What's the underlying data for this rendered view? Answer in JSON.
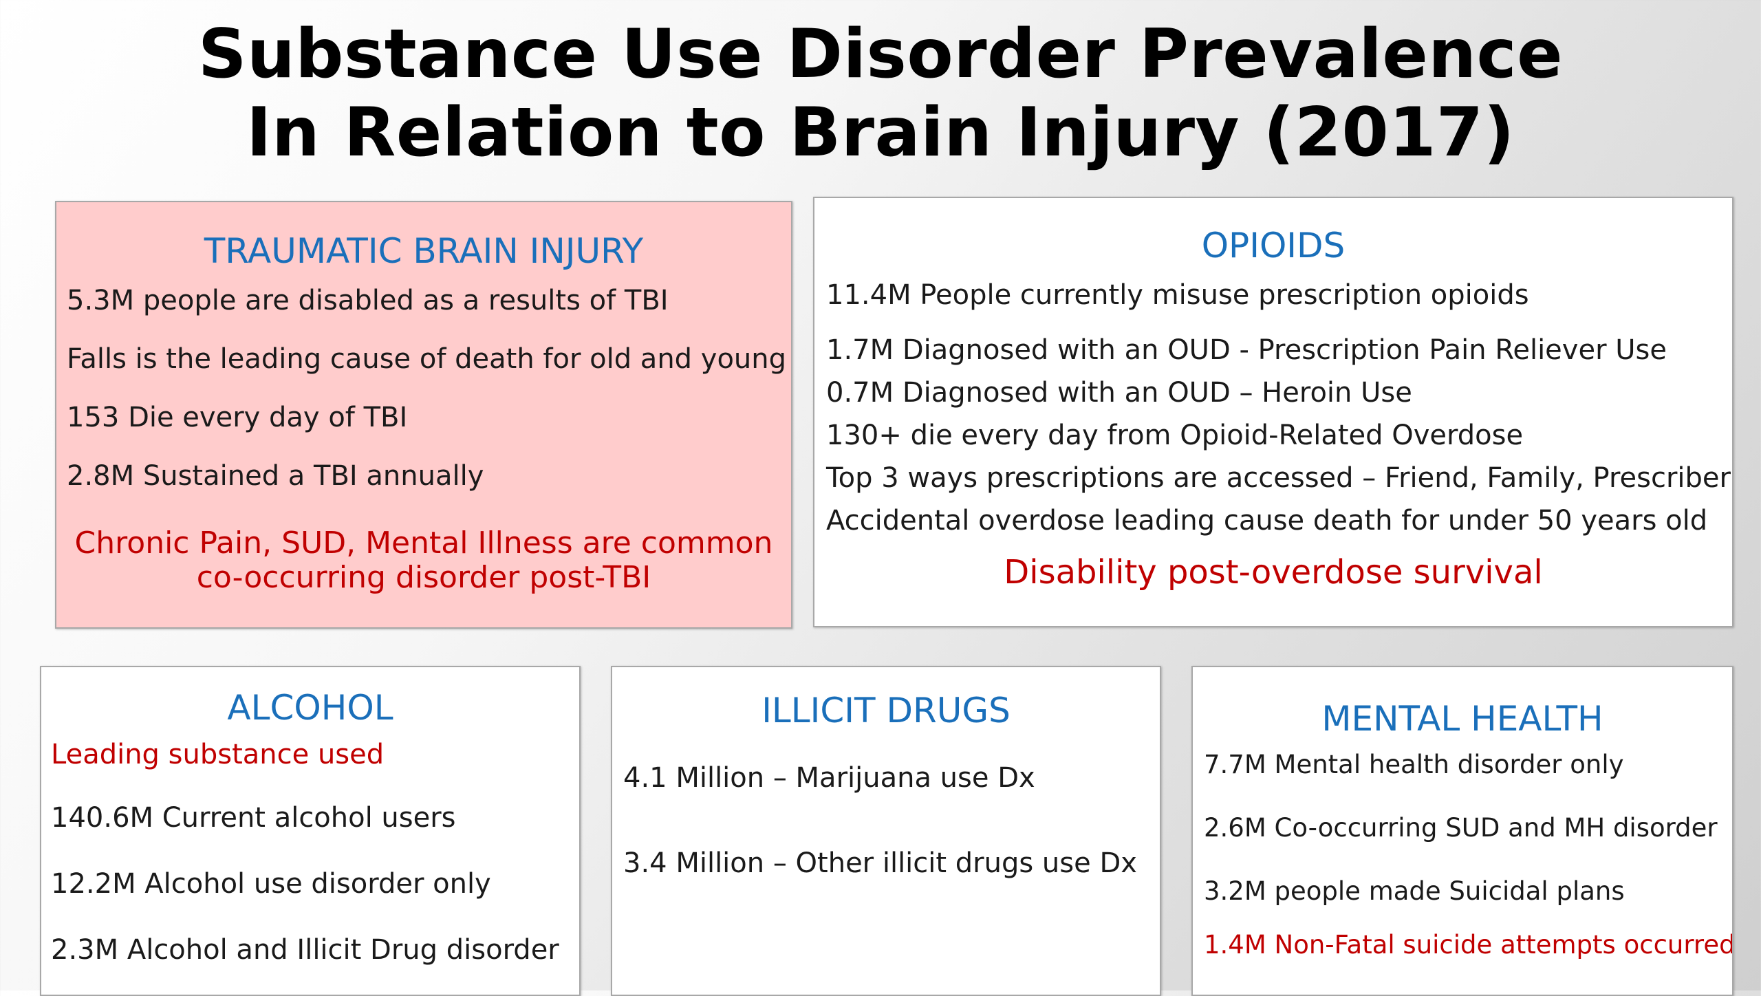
{
  "title": {
    "line1": "Substance Use Disorder Prevalence",
    "line2": "In Relation to Brain Injury (2017)"
  },
  "tbi": {
    "heading": "TRAUMATIC BRAIN INJURY",
    "items": [
      "5.3M people are disabled as a results of TBI",
      "Falls is the leading cause of death for old and young",
      "153 Die every day of TBI",
      "2.8M Sustained a TBI annually"
    ],
    "emphasis_line1": "Chronic Pain, SUD, Mental Illness are common",
    "emphasis_line2": "co-occurring disorder post-TBI"
  },
  "opioids": {
    "heading": "OPIOIDS",
    "items": [
      "11.4M People currently misuse prescription opioids",
      "1.7M Diagnosed with an OUD - Prescription Pain Reliever Use",
      "0.7M Diagnosed with an OUD – Heroin Use",
      "130+ die every day from Opioid-Related Overdose",
      "Top 3 ways prescriptions are accessed – Friend, Family, Prescriber",
      "Accidental overdose leading cause death for under 50 years old"
    ],
    "emphasis": "Disability post-overdose survival"
  },
  "alcohol": {
    "heading": "ALCOHOL",
    "subheading": "Leading substance used",
    "items": [
      "140.6M Current alcohol users",
      "12.2M Alcohol use disorder only",
      "2.3M Alcohol and Illicit Drug disorder"
    ]
  },
  "illicit": {
    "heading": "ILLICIT DRUGS",
    "items": [
      "4.1 Million – Marijuana use Dx",
      "3.4 Million – Other illicit drugs use Dx"
    ]
  },
  "mental": {
    "heading": "MENTAL HEALTH",
    "items": [
      "7.7M Mental health disorder only",
      "2.6M Co-occurring SUD and MH disorder",
      "3.2M people made Suicidal plans"
    ],
    "emphasis": "1.4M Non-Fatal suicide attempts occurred"
  },
  "colors": {
    "heading_blue": "#1a6fba",
    "emphasis_red": "#c00000",
    "tbi_background": "#ffcccc"
  }
}
